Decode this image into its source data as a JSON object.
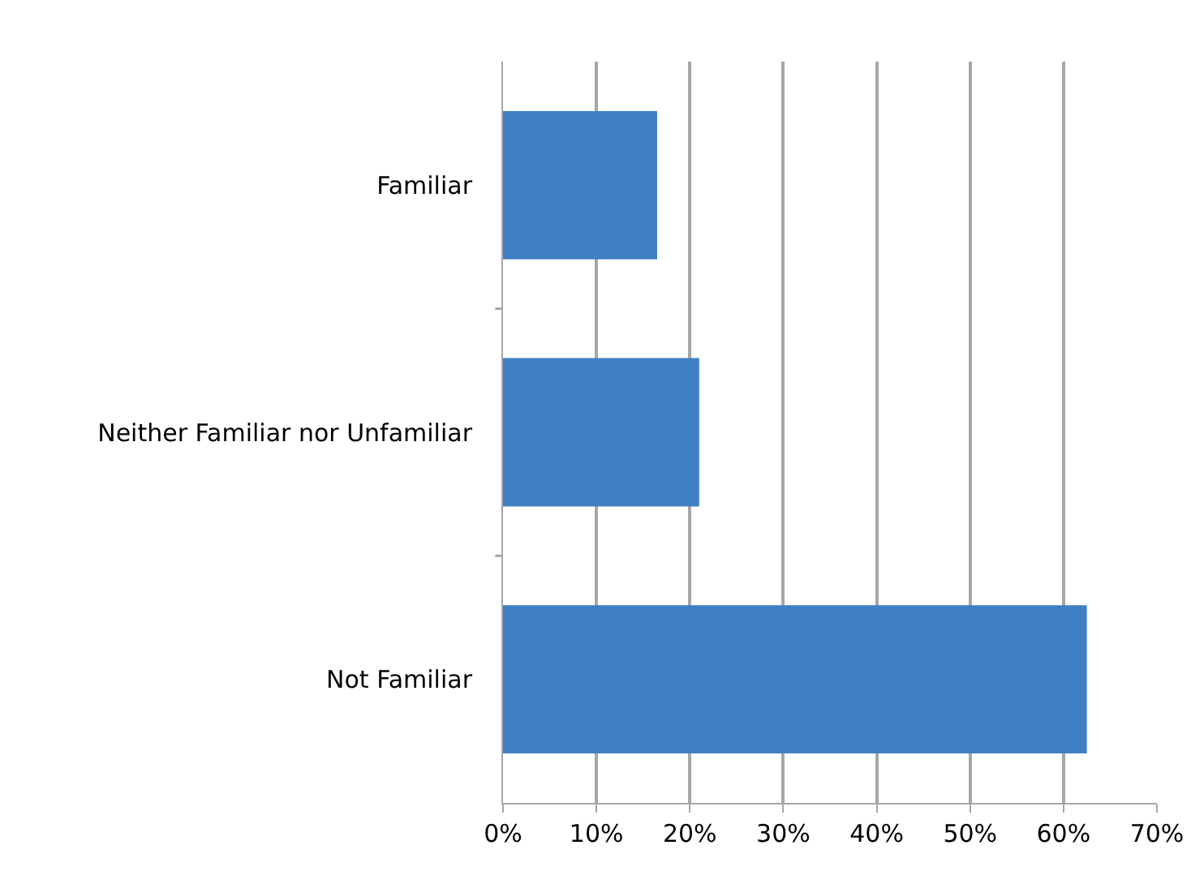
{
  "chart_data": {
    "type": "bar",
    "orientation": "horizontal",
    "categories": [
      "Familiar",
      "Neither Familiar nor Unfamiliar",
      "Not Familiar"
    ],
    "values": [
      16.5,
      21,
      62.5
    ],
    "color": "#3f80c4",
    "xlim": [
      0,
      70
    ],
    "xticks": [
      {
        "value": 0,
        "label": "0%"
      },
      {
        "value": 10,
        "label": "10%"
      },
      {
        "value": 20,
        "label": "20%"
      },
      {
        "value": 30,
        "label": "30%"
      },
      {
        "value": 40,
        "label": "40%"
      },
      {
        "value": 50,
        "label": "50%"
      },
      {
        "value": 60,
        "label": "60%"
      },
      {
        "value": 70,
        "label": "70%"
      }
    ],
    "grid": "x",
    "legend": false
  }
}
